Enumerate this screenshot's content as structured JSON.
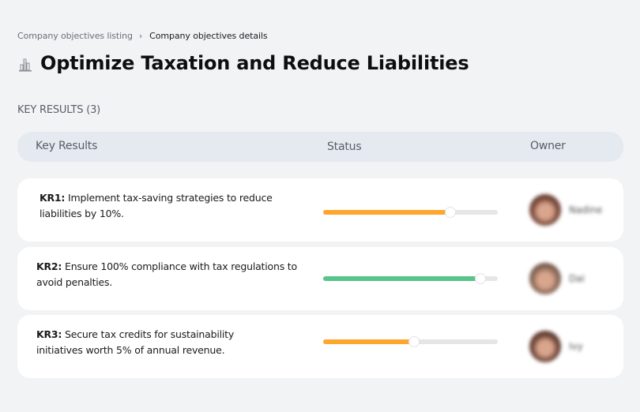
{
  "breadcrumb": {
    "parent": "Company objectives listing",
    "separator": "›",
    "current": "Company objectives details"
  },
  "objective": {
    "icon": "cityscape-icon",
    "title": "Optimize Taxation and Reduce Liabilities"
  },
  "key_results_section": {
    "label": "KEY RESULTS (3)"
  },
  "table": {
    "headers": {
      "key_results": "Key Results",
      "status": "Status",
      "owner": "Owner"
    },
    "rows": [
      {
        "id": "KR1:",
        "text": " Implement tax-saving strategies to reduce liabilities by 10%.",
        "progress_percent": 73,
        "progress_color": "#ffa62e",
        "owner_name": "Nadine",
        "avatar_color": "#7a4a3c"
      },
      {
        "id": "KR2:",
        "text": " Ensure 100% compliance with tax regulations to avoid penalties.",
        "progress_percent": 90,
        "progress_color": "#57c48a",
        "owner_name": "Dai",
        "avatar_color": "#8a6a58"
      },
      {
        "id": "KR3:",
        "text": " Secure tax credits for sustainability initiatives worth 5% of annual revenue.",
        "progress_percent": 52,
        "progress_color": "#ffa62e",
        "owner_name": "Ivy",
        "avatar_color": "#6e4538"
      }
    ]
  },
  "colors": {
    "background": "#f2f3f5",
    "header_bg": "#e5e9f0",
    "card_bg": "#ffffff",
    "progress_track": "#e6e6e6",
    "in_progress": "#ffa62e",
    "on_track": "#57c48a"
  }
}
